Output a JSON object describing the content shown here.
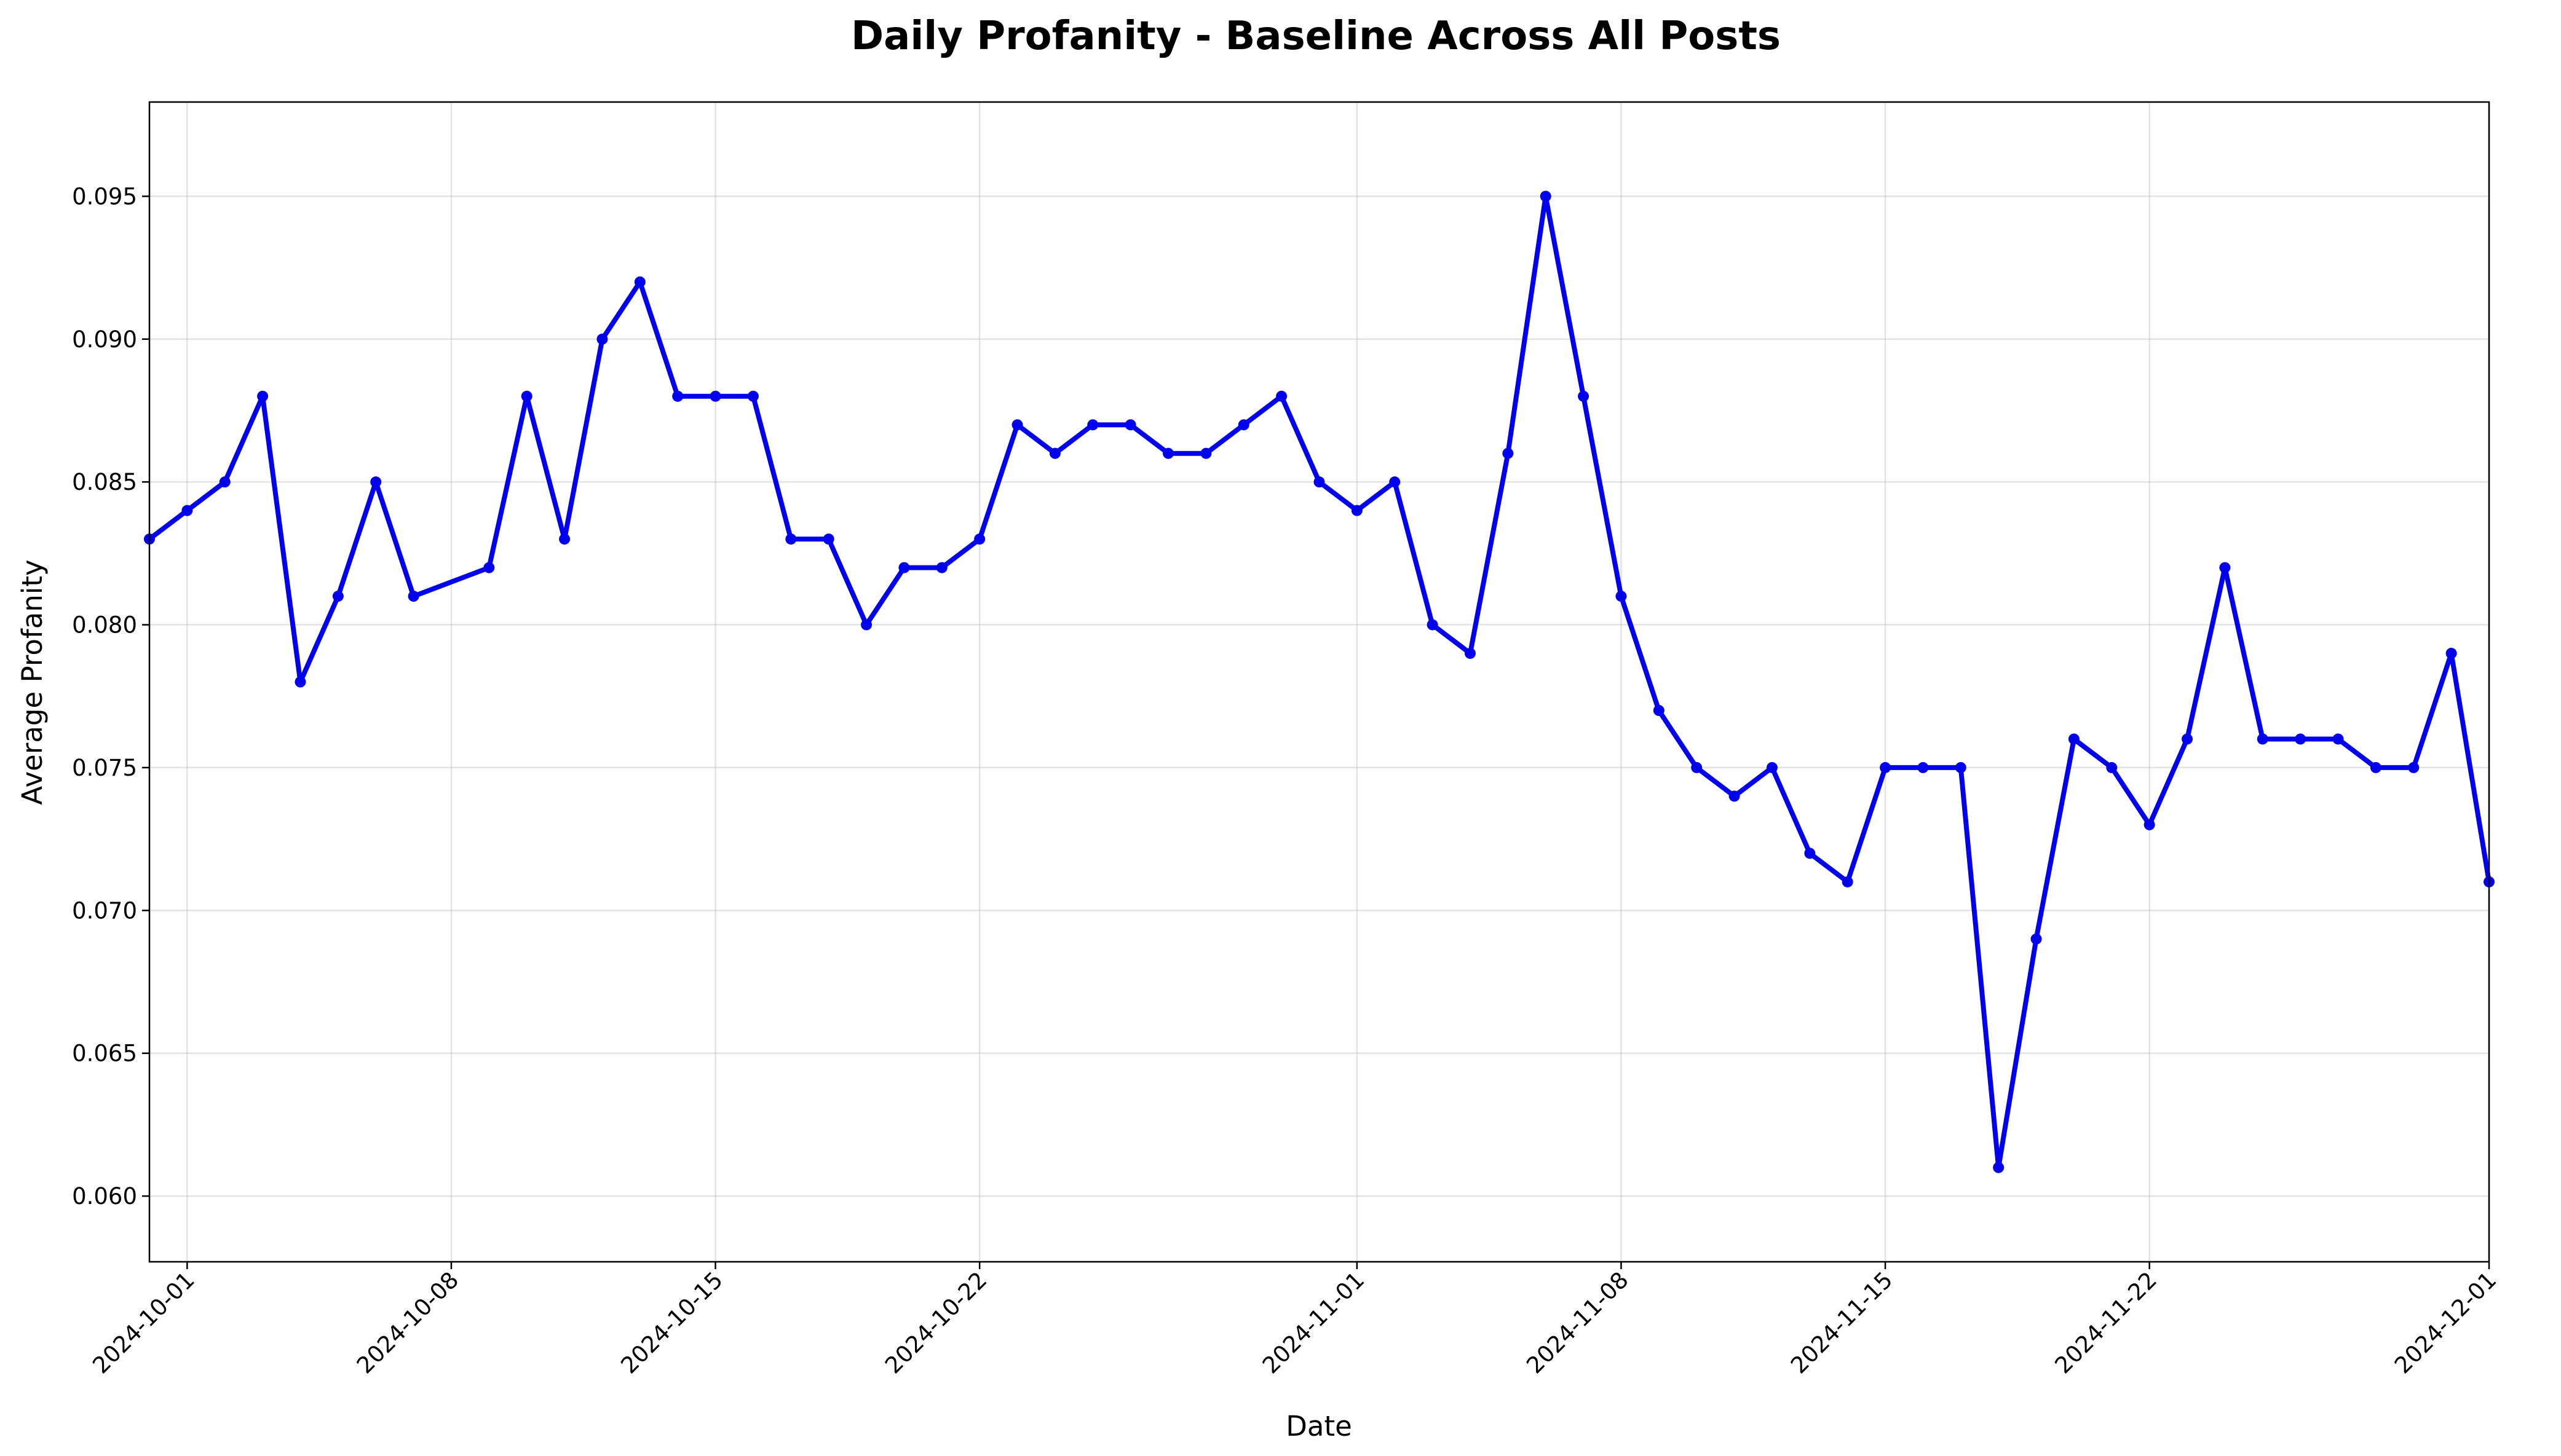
{
  "chart_data": {
    "type": "line",
    "title": "Daily Profanity - Baseline Across All Posts",
    "xlabel": "Date",
    "ylabel": "Average Profanity",
    "xlim": [
      "2024-09-30",
      "2024-12-01"
    ],
    "ylim": [
      0.0577,
      0.0983
    ],
    "grid": true,
    "color": "#0000ee",
    "x_ticks": [
      "2024-10-01",
      "2024-10-08",
      "2024-10-15",
      "2024-10-22",
      "2024-11-01",
      "2024-11-08",
      "2024-11-15",
      "2024-11-22",
      "2024-12-01"
    ],
    "y_ticks": [
      "0.060",
      "0.065",
      "0.070",
      "0.075",
      "0.080",
      "0.085",
      "0.090",
      "0.095"
    ],
    "series": [
      {
        "points": [
          [
            "2024-09-30",
            0.083
          ],
          [
            "2024-10-01",
            0.084
          ],
          [
            "2024-10-02",
            0.085
          ],
          [
            "2024-10-03",
            0.088
          ],
          [
            "2024-10-04",
            0.078
          ],
          [
            "2024-10-05",
            0.081
          ],
          [
            "2024-10-06",
            0.085
          ],
          [
            "2024-10-07",
            0.081
          ],
          [
            "2024-10-09",
            0.082
          ],
          [
            "2024-10-10",
            0.088
          ],
          [
            "2024-10-11",
            0.083
          ],
          [
            "2024-10-12",
            0.09
          ],
          [
            "2024-10-13",
            0.092
          ],
          [
            "2024-10-14",
            0.088
          ],
          [
            "2024-10-15",
            0.088
          ],
          [
            "2024-10-16",
            0.088
          ],
          [
            "2024-10-17",
            0.083
          ],
          [
            "2024-10-18",
            0.083
          ],
          [
            "2024-10-19",
            0.08
          ],
          [
            "2024-10-20",
            0.082
          ],
          [
            "2024-10-21",
            0.082
          ],
          [
            "2024-10-22",
            0.083
          ],
          [
            "2024-10-23",
            0.087
          ],
          [
            "2024-10-24",
            0.086
          ],
          [
            "2024-10-25",
            0.087
          ],
          [
            "2024-10-26",
            0.087
          ],
          [
            "2024-10-27",
            0.086
          ],
          [
            "2024-10-28",
            0.086
          ],
          [
            "2024-10-29",
            0.087
          ],
          [
            "2024-10-30",
            0.088
          ],
          [
            "2024-10-31",
            0.085
          ],
          [
            "2024-11-01",
            0.084
          ],
          [
            "2024-11-02",
            0.085
          ],
          [
            "2024-11-03",
            0.08
          ],
          [
            "2024-11-04",
            0.079
          ],
          [
            "2024-11-05",
            0.086
          ],
          [
            "2024-11-06",
            0.095
          ],
          [
            "2024-11-07",
            0.088
          ],
          [
            "2024-11-08",
            0.081
          ],
          [
            "2024-11-09",
            0.077
          ],
          [
            "2024-11-10",
            0.075
          ],
          [
            "2024-11-11",
            0.074
          ],
          [
            "2024-11-12",
            0.075
          ],
          [
            "2024-11-13",
            0.072
          ],
          [
            "2024-11-14",
            0.071
          ],
          [
            "2024-11-15",
            0.075
          ],
          [
            "2024-11-16",
            0.075
          ],
          [
            "2024-11-17",
            0.075
          ],
          [
            "2024-11-18",
            0.061
          ],
          [
            "2024-11-19",
            0.069
          ],
          [
            "2024-11-20",
            0.076
          ],
          [
            "2024-11-21",
            0.075
          ],
          [
            "2024-11-22",
            0.073
          ],
          [
            "2024-11-23",
            0.076
          ],
          [
            "2024-11-24",
            0.082
          ],
          [
            "2024-11-25",
            0.076
          ],
          [
            "2024-11-26",
            0.076
          ],
          [
            "2024-11-27",
            0.076
          ],
          [
            "2024-11-28",
            0.075
          ],
          [
            "2024-11-29",
            0.075
          ],
          [
            "2024-11-30",
            0.079
          ],
          [
            "2024-12-01",
            0.071
          ]
        ]
      }
    ]
  }
}
